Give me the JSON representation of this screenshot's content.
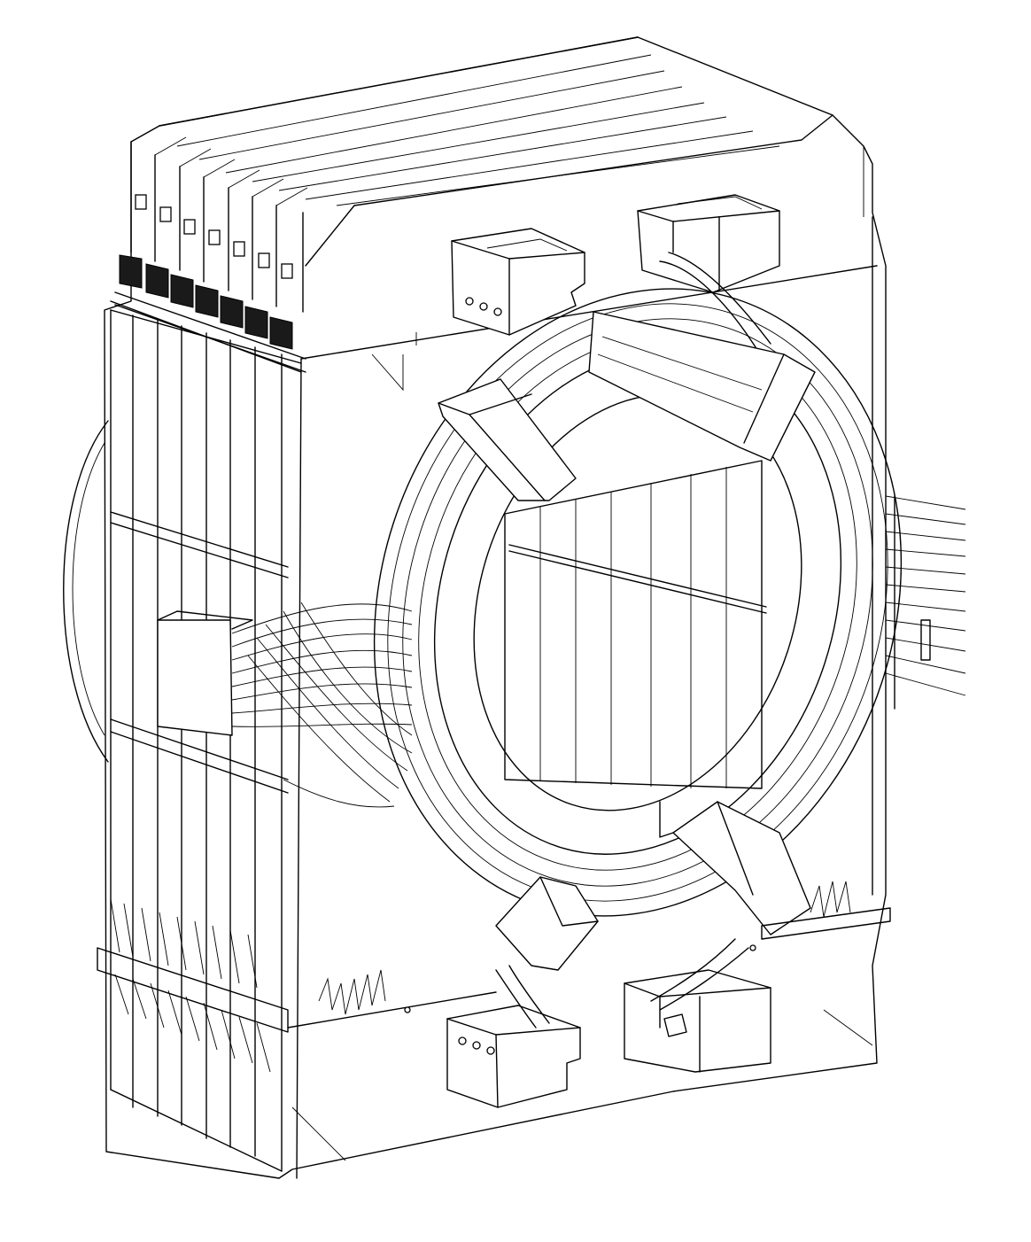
{
  "figure": {
    "kind": "isometric line drawing",
    "line_color": "#000000",
    "background": "#ffffff"
  }
}
